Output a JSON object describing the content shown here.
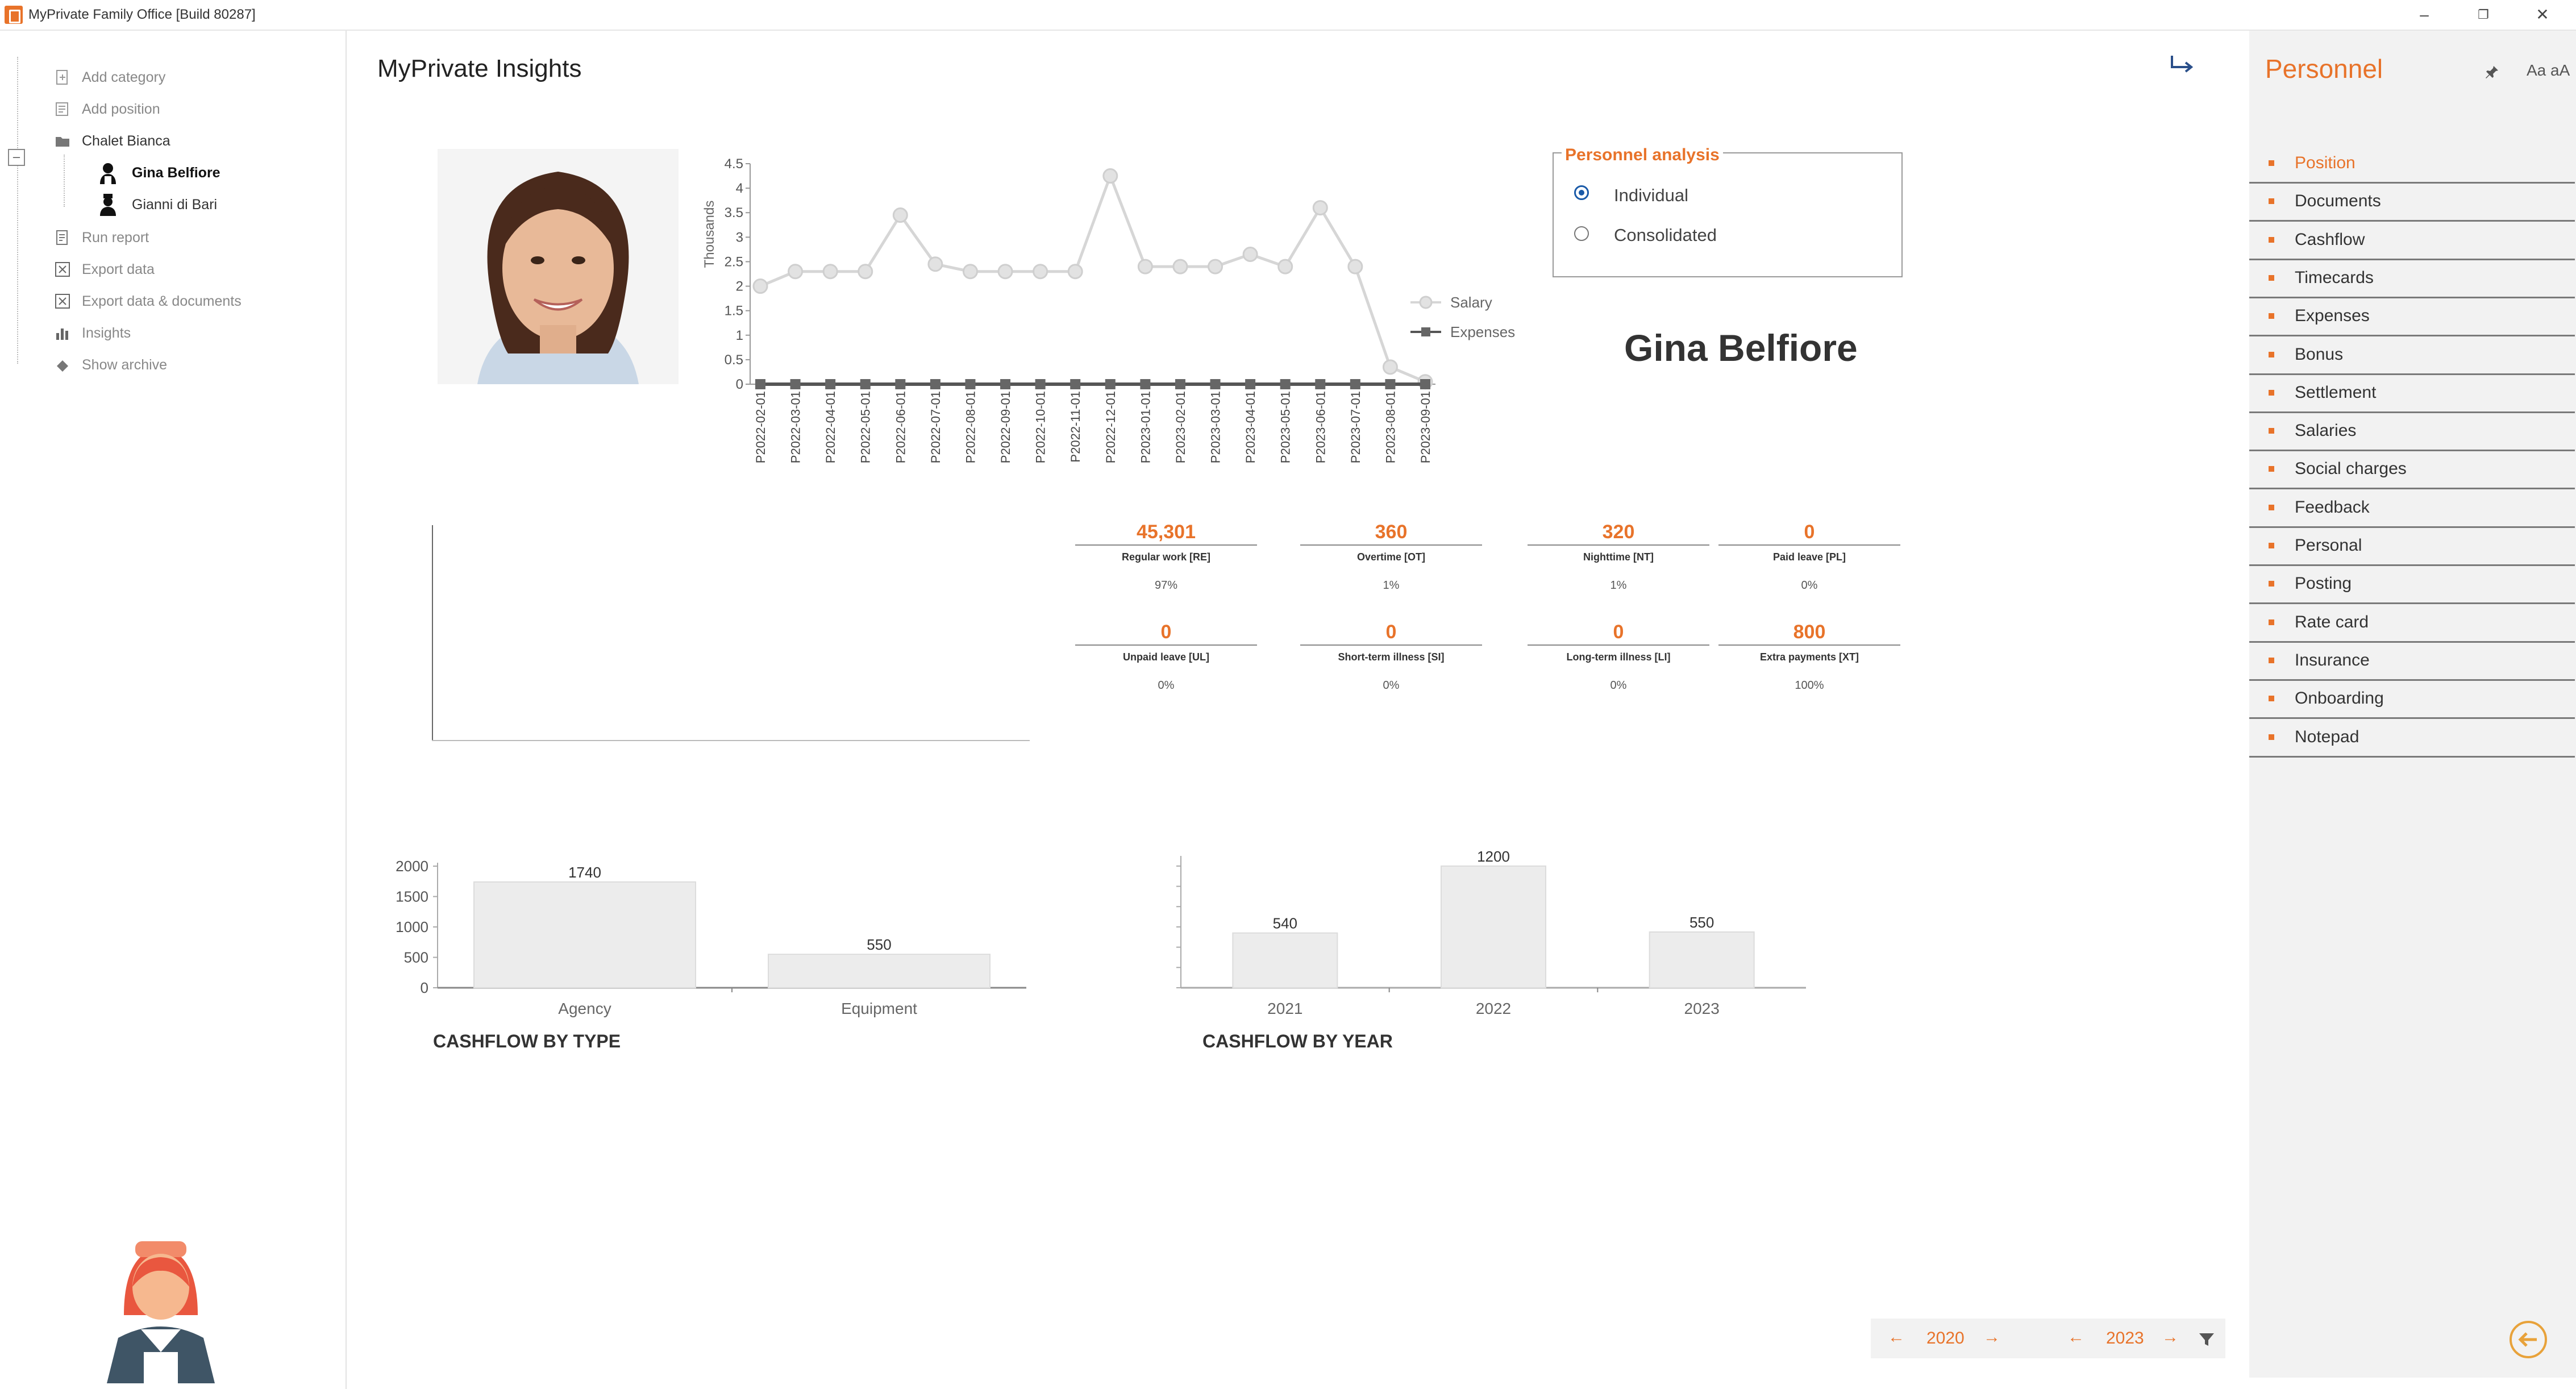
{
  "window": {
    "title": "MyPrivate Family Office [Build 80287]"
  },
  "tree": {
    "items": [
      {
        "label": "Add category",
        "icon": "add-category-icon"
      },
      {
        "label": "Add position",
        "icon": "add-position-icon"
      },
      {
        "label": "Chalet Bianca",
        "icon": "folder-icon"
      },
      {
        "label": "Gina Belfiore",
        "icon": "maid-person-icon"
      },
      {
        "label": "Gianni di Bari",
        "icon": "chef-person-icon"
      },
      {
        "label": "Run report",
        "icon": "report-icon"
      },
      {
        "label": "Export data",
        "icon": "excel-icon"
      },
      {
        "label": "Export data & documents",
        "icon": "excel-icon"
      },
      {
        "label": "Insights",
        "icon": "bar-chart-icon"
      },
      {
        "label": "Show archive",
        "icon": "archive-icon"
      }
    ]
  },
  "main": {
    "title": "MyPrivate Insights",
    "person_name": "Gina Belfiore",
    "analysis": {
      "title": "Personnel analysis",
      "options": [
        "Individual",
        "Consolidated"
      ],
      "selected": "Individual"
    }
  },
  "kpis": [
    {
      "value": "45,301",
      "label": "Regular work [RE]",
      "pct": "97%"
    },
    {
      "value": "360",
      "label": "Overtime [OT]",
      "pct": "1%"
    },
    {
      "value": "320",
      "label": "Nighttime [NT]",
      "pct": "1%"
    },
    {
      "value": "0",
      "label": "Paid leave [PL]",
      "pct": "0%"
    },
    {
      "value": "0",
      "label": "Unpaid leave [UL]",
      "pct": "0%"
    },
    {
      "value": "0",
      "label": "Short-term illness [SI]",
      "pct": "0%"
    },
    {
      "value": "0",
      "label": "Long-term illness [LI]",
      "pct": "0%"
    },
    {
      "value": "800",
      "label": "Extra payments [XT]",
      "pct": "100%"
    }
  ],
  "right_panel": {
    "title": "Personnel",
    "font_toggle": "Aa aA",
    "active_item": "Position",
    "items": [
      "Position",
      "Documents",
      "Cashflow",
      "Timecards",
      "Expenses",
      "Bonus",
      "Settlement",
      "Salaries",
      "Social charges",
      "Feedback",
      "Personal",
      "Posting",
      "Rate card",
      "Insurance",
      "Onboarding",
      "Notepad"
    ]
  },
  "year_bar": {
    "from_year": "2020",
    "to_year": "2023"
  },
  "colors": {
    "accent": "#e8732a",
    "radio": "#1a5aa8",
    "panel_bg": "#f2f2f2"
  },
  "chart_data": [
    {
      "type": "line",
      "ylabel": "Thousands",
      "ylim": [
        0,
        4.5
      ],
      "yticks": [
        "0",
        "0.5",
        "1",
        "1.5",
        "2",
        "2.5",
        "3",
        "3.5",
        "4",
        "4.5"
      ],
      "x": [
        "P2022-02-01",
        "P2022-03-01",
        "P2022-04-01",
        "P2022-05-01",
        "P2022-06-01",
        "P2022-07-01",
        "P2022-08-01",
        "P2022-09-01",
        "P2022-10-01",
        "P2022-11-01",
        "P2022-12-01",
        "P2023-01-01",
        "P2023-02-01",
        "P2023-03-01",
        "P2023-04-01",
        "P2023-05-01",
        "P2023-06-01",
        "P2023-07-01",
        "P2023-08-01",
        "P2023-09-01"
      ],
      "series": [
        {
          "name": "Salary",
          "values": [
            2.0,
            2.3,
            2.3,
            2.3,
            3.45,
            2.45,
            2.3,
            2.3,
            2.3,
            2.3,
            4.25,
            2.4,
            2.4,
            2.4,
            2.65,
            2.4,
            3.6,
            2.4,
            0.35,
            0.05
          ]
        },
        {
          "name": "Expenses",
          "values": [
            0,
            0,
            0,
            0,
            0,
            0,
            0,
            0,
            0,
            0,
            0,
            0,
            0,
            0,
            0,
            0,
            0,
            0,
            0,
            0
          ]
        }
      ],
      "legend": "right"
    },
    {
      "type": "bar",
      "title": "CASHFLOW BY TYPE",
      "categories": [
        "Agency",
        "Equipment"
      ],
      "values": [
        1740,
        550
      ],
      "ylim": [
        0,
        2000
      ],
      "yticks": [
        "0",
        "500",
        "1000",
        "1500",
        "2000"
      ]
    },
    {
      "type": "bar",
      "title": "CASHFLOW BY YEAR",
      "categories": [
        "2021",
        "2022",
        "2023"
      ],
      "values": [
        540,
        1200,
        550
      ],
      "ylim": [
        0,
        1300
      ]
    }
  ]
}
